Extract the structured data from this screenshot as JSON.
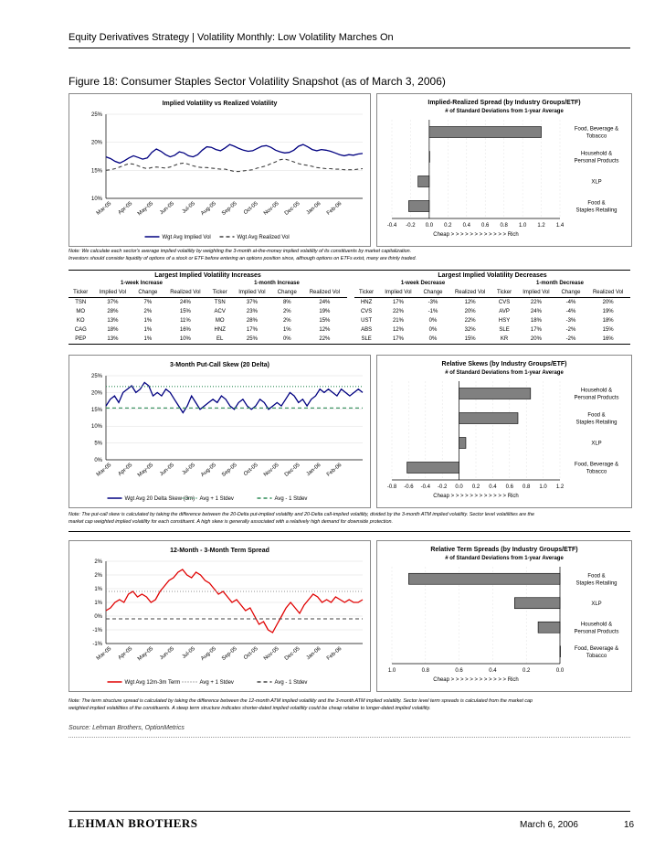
{
  "header": {
    "title": "Equity Derivatives Strategy | Volatility Monthly: Low Volatility Marches On"
  },
  "figure": {
    "title": "Figure 18: Consumer Staples Sector Volatility Snapshot (as of March 3, 2006)"
  },
  "notes": {
    "note1_l1": "Note: We calculate each sector's average implied volatility by weighting the 3-month at-the-money implied volatility of its constituents by market capitalization.",
    "note1_l2": "Investors should consider liquidity of options of a stock or ETF before entering an options position since, although options on ETFs exist, many are thinly traded.",
    "note2_l1": "Note: The put-call skew is calculated by taking the difference between the 20-Delta put-implied volatility and 20-Delta call-implied volatility, divided by the 3-month ATM implied volatility. Sector level volatilities are the",
    "note2_l2": "market cap weighted implied volatility for each constituent. A high skew is generally associated with a relatively high demand for downside protection.",
    "note3_l1": "Note: The term structure spread is calculated by taking the difference between the 12-month ATM implied volatility and the 3-month ATM implied volatility. Sector level term spreads is calculated from the market cap",
    "note3_l2": "weighted implied volatilities of the constituents. A steep term structure indicates shorter-dated implied volatility could be cheap relative to longer-dated implied volatility."
  },
  "tables": {
    "increases": {
      "title": "Largest Implied Volatility Increases",
      "groups": [
        "1-week Increase",
        "1-month Increase"
      ],
      "columns": [
        "Ticker",
        "Implied Vol",
        "Change",
        "Realized Vol",
        "Ticker",
        "Implied Vol",
        "Change",
        "Realized Vol"
      ],
      "rows": [
        [
          "TSN",
          "37%",
          "7%",
          "24%",
          "TSN",
          "37%",
          "8%",
          "24%"
        ],
        [
          "MO",
          "28%",
          "2%",
          "15%",
          "ACV",
          "23%",
          "2%",
          "19%"
        ],
        [
          "KO",
          "13%",
          "1%",
          "11%",
          "MO",
          "28%",
          "2%",
          "15%"
        ],
        [
          "CAG",
          "18%",
          "1%",
          "16%",
          "HNZ",
          "17%",
          "1%",
          "12%"
        ],
        [
          "PEP",
          "13%",
          "1%",
          "10%",
          "EL",
          "25%",
          "0%",
          "22%"
        ]
      ]
    },
    "decreases": {
      "title": "Largest Implied Volatility Decreases",
      "groups": [
        "1-week Decrease",
        "1-month Decrease"
      ],
      "columns": [
        "Ticker",
        "Implied Vol",
        "Change",
        "Realized Vol",
        "Ticker",
        "Implied Vol",
        "Change",
        "Realized Vol"
      ],
      "rows": [
        [
          "HNZ",
          "17%",
          "-3%",
          "12%",
          "CVS",
          "22%",
          "-4%",
          "20%"
        ],
        [
          "CVS",
          "22%",
          "-1%",
          "20%",
          "AVP",
          "24%",
          "-4%",
          "19%"
        ],
        [
          "UST",
          "21%",
          "0%",
          "22%",
          "HSY",
          "18%",
          "-3%",
          "18%"
        ],
        [
          "ABS",
          "12%",
          "0%",
          "32%",
          "SLE",
          "17%",
          "-2%",
          "15%"
        ],
        [
          "SLE",
          "17%",
          "0%",
          "15%",
          "KR",
          "20%",
          "-2%",
          "16%"
        ]
      ]
    }
  },
  "footer": {
    "source": "Source: Lehman Brothers, OptionMetrics",
    "logo": "LEHMAN BROTHERS",
    "date": "March 6, 2006",
    "page": "16"
  },
  "colors": {
    "navy": "#000080",
    "red": "#e00000",
    "green": "#2e8b57",
    "bar": "#808080"
  },
  "chart_data": [
    {
      "id": "ivrv",
      "type": "line",
      "title": "Implied Volatility vs Realized Volatility",
      "x_labels": [
        "Mar-05",
        "Apr-05",
        "May-05",
        "Jun-05",
        "Jul-05",
        "Aug-05",
        "Sep-05",
        "Oct-05",
        "Nov-05",
        "Dec-05",
        "Jan-06",
        "Feb-06"
      ],
      "yticks": [
        "10%",
        "15%",
        "20%",
        "25%"
      ],
      "ylim": [
        10,
        25
      ],
      "series": [
        {
          "name": "Wgt Avg Implied Vol",
          "color": "#000080",
          "style": "solid",
          "values": [
            17.4,
            17.1,
            16.6,
            16.3,
            16.7,
            17.2,
            17.6,
            17.3,
            17.0,
            17.2,
            18.2,
            18.8,
            18.4,
            17.8,
            17.4,
            17.7,
            18.3,
            18.1,
            17.6,
            17.4,
            17.8,
            18.6,
            19.2,
            19.1,
            18.7,
            18.5,
            19.0,
            19.6,
            19.3,
            18.9,
            18.6,
            18.4,
            18.5,
            18.9,
            19.3,
            19.4,
            19.1,
            18.6,
            18.3,
            18.1,
            18.2,
            18.6,
            19.3,
            19.6,
            19.2,
            18.7,
            18.5,
            18.7,
            18.6,
            18.4,
            18.1,
            17.8,
            17.6,
            17.8,
            17.7,
            17.9,
            18.0
          ]
        },
        {
          "name": "Wgt Avg Realized Vol",
          "color": "#404040",
          "style": "dashed",
          "values": [
            15.0,
            15.1,
            15.3,
            15.6,
            15.9,
            16.2,
            16.1,
            15.8,
            15.5,
            15.3,
            15.5,
            15.6,
            15.5,
            15.4,
            15.6,
            15.9,
            16.2,
            16.3,
            16.1,
            15.8,
            15.6,
            15.5,
            15.5,
            15.4,
            15.3,
            15.2,
            15.2,
            15.0,
            14.8,
            14.8,
            14.9,
            15.0,
            15.1,
            15.4,
            15.6,
            15.8,
            16.2,
            16.5,
            16.9,
            17.0,
            16.8,
            16.5,
            16.2,
            16.0,
            15.9,
            15.7,
            15.5,
            15.4,
            15.3,
            15.3,
            15.2,
            15.2,
            15.1,
            15.1,
            15.1,
            15.2,
            15.3
          ]
        }
      ]
    },
    {
      "id": "ivspread",
      "type": "bar",
      "orientation": "horizontal",
      "title": "Implied-Realized Spread (by Industry Groups/ETF)",
      "subtitle": "# of Standard Deviations from 1-year Average",
      "categories": [
        "Food, Beverage & Tobacco",
        "Household & Personal Products",
        "XLP",
        "Food & Staples Retailing"
      ],
      "values": [
        1.2,
        0.0,
        -0.12,
        -0.22
      ],
      "xlim": [
        -0.4,
        1.4
      ],
      "xticks": [
        "-0.4",
        "-0.2",
        "0.0",
        "0.2",
        "0.4",
        "0.6",
        "0.8",
        "1.0",
        "1.2",
        "1.4"
      ],
      "xlabel": "Cheap > > > > > > > > > > > > Rich"
    },
    {
      "id": "skew",
      "type": "line",
      "title": "3-Month Put-Call Skew (20 Delta)",
      "x_labels": [
        "Mar-05",
        "Apr-05",
        "May-05",
        "Jun-05",
        "Jul-05",
        "Aug-05",
        "Sep-05",
        "Oct-05",
        "Nov-05",
        "Dec-05",
        "Jan-06",
        "Feb-06"
      ],
      "yticks": [
        "0%",
        "5%",
        "10%",
        "15%",
        "20%",
        "25%"
      ],
      "ylim": [
        0,
        25
      ],
      "series": [
        {
          "name": "Wgt Avg 20 Delta Skew (3m)",
          "color": "#000080",
          "style": "solid",
          "values": [
            16,
            18,
            19,
            17,
            20,
            21,
            22,
            20,
            21,
            23,
            22,
            19,
            20,
            19,
            21,
            20,
            18,
            16,
            14,
            16,
            19,
            17,
            15,
            16,
            17,
            18,
            17,
            19,
            18,
            16,
            15,
            17,
            18,
            16,
            15,
            16,
            18,
            17,
            15,
            16,
            17,
            16,
            18,
            20,
            19,
            17,
            18,
            16,
            18,
            19,
            21,
            20,
            21,
            20,
            19,
            21,
            20,
            19,
            20,
            21,
            20
          ]
        },
        {
          "name": "Avg + 1 Stdev",
          "color": "#2e8b57",
          "style": "dotted",
          "values": [
            21.8,
            21.8
          ]
        },
        {
          "name": "Avg - 1 Stdev",
          "color": "#2e8b57",
          "style": "dashed",
          "values": [
            15.4,
            15.4
          ]
        }
      ]
    },
    {
      "id": "skewrel",
      "type": "bar",
      "orientation": "horizontal",
      "title": "Relative Skews (by Industry Groups/ETF)",
      "subtitle": "# of Standard Deviations from 1-year Average",
      "categories": [
        "Household & Personal Products",
        "Food & Staples Retailing",
        "XLP",
        "Food, Beverage & Tobacco"
      ],
      "values": [
        0.85,
        0.7,
        0.08,
        -0.62
      ],
      "xlim": [
        -0.8,
        1.2
      ],
      "xticks": [
        "-0.8",
        "-0.6",
        "-0.4",
        "-0.2",
        "0.0",
        "0.2",
        "0.4",
        "0.6",
        "0.8",
        "1.0",
        "1.2"
      ],
      "xlabel": "Cheap > > > > > > > > > > > > Rich"
    },
    {
      "id": "term",
      "type": "line",
      "title": "12-Month - 3-Month Term Spread",
      "x_labels": [
        "Mar-05",
        "Apr-05",
        "May-05",
        "Jun-05",
        "Jul-05",
        "Aug-05",
        "Sep-05",
        "Oct-05",
        "Nov-05",
        "Dec-05",
        "Jan-06",
        "Feb-06"
      ],
      "yticks": [
        "-1%",
        "-1%",
        "0%",
        "1%",
        "1%",
        "2%",
        "2%"
      ],
      "ylim": [
        -1.0,
        2.0
      ],
      "series": [
        {
          "name": "Wgt Avg 12m-3m Term",
          "color": "#e00000",
          "style": "solid",
          "values": [
            0.2,
            0.3,
            0.5,
            0.6,
            0.5,
            0.8,
            0.9,
            0.7,
            0.8,
            0.7,
            0.5,
            0.6,
            0.9,
            1.1,
            1.3,
            1.4,
            1.6,
            1.7,
            1.5,
            1.4,
            1.6,
            1.5,
            1.3,
            1.2,
            1.0,
            0.8,
            0.9,
            0.7,
            0.5,
            0.6,
            0.4,
            0.2,
            0.3,
            0.0,
            -0.3,
            -0.2,
            -0.5,
            -0.6,
            -0.3,
            0.0,
            0.3,
            0.5,
            0.3,
            0.1,
            0.4,
            0.6,
            0.8,
            0.7,
            0.5,
            0.6,
            0.5,
            0.7,
            0.6,
            0.5,
            0.6,
            0.5,
            0.5,
            0.6
          ]
        },
        {
          "name": "Avg + 1 Stdev",
          "color": "#909090",
          "style": "dotted",
          "values": [
            0.9,
            0.9
          ]
        },
        {
          "name": "Avg - 1 Stdev",
          "color": "#404040",
          "style": "dashed",
          "values": [
            -0.1,
            -0.1
          ]
        }
      ]
    },
    {
      "id": "termrel",
      "type": "bar",
      "orientation": "horizontal",
      "title": "Relative Term Spreads (by Industry Groups/ETF)",
      "subtitle": "# of Standard Deviations from 1-year Average",
      "categories": [
        "Food & Staples Retailing",
        "XLP",
        "Household & Personal Products",
        "Food, Beverage & Tobacco"
      ],
      "values": [
        0.9,
        0.27,
        0.13,
        0.0
      ],
      "xlim": [
        1.0,
        0.0
      ],
      "xticks": [
        "1.0",
        "0.8",
        "0.6",
        "0.4",
        "0.2",
        "0.0"
      ],
      "xlabel": "Cheap > > > > > > > > > > > > Rich"
    }
  ]
}
